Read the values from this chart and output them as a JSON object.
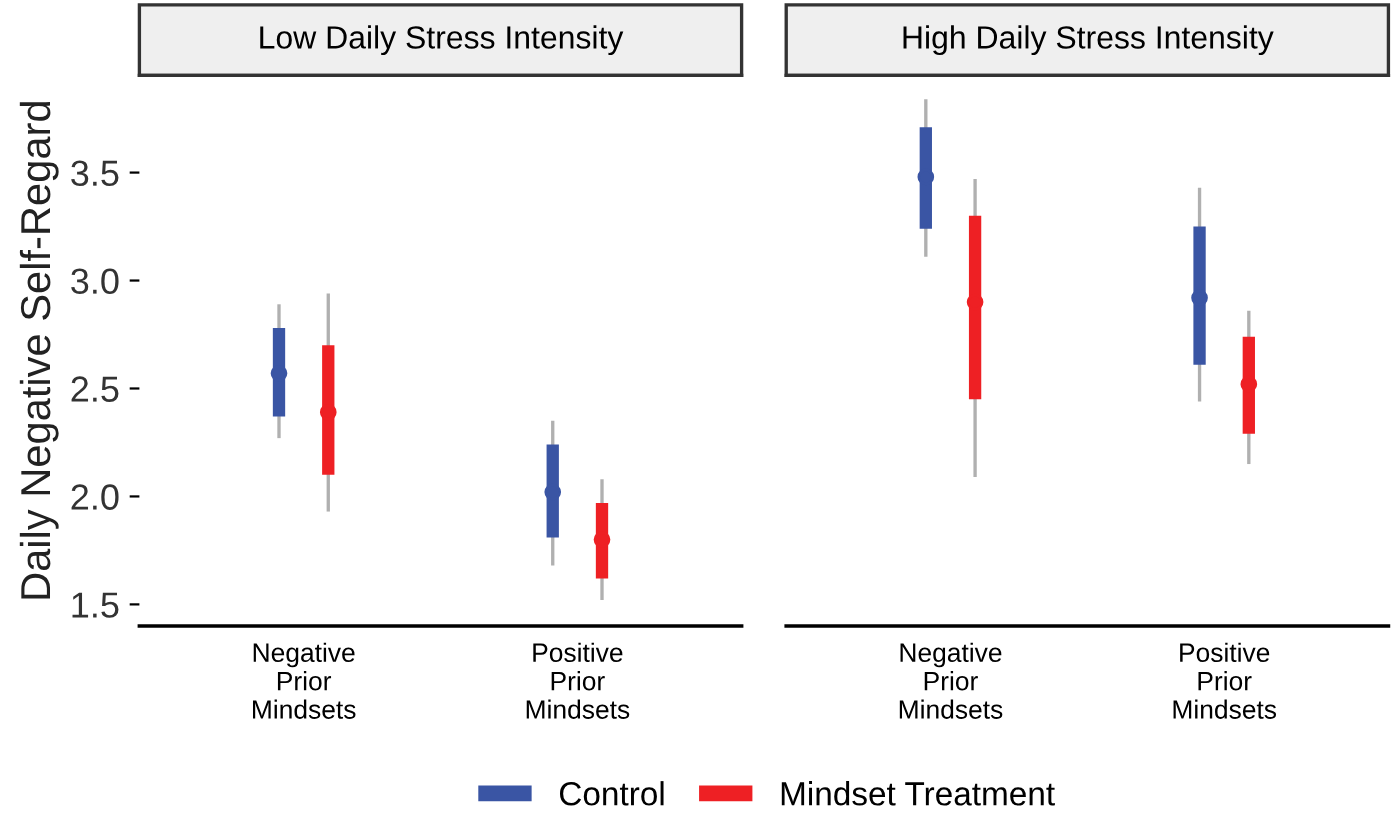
{
  "chart_data": [
    {
      "type": "box",
      "title": "Low Daily Stress Intensity",
      "ylabel": "Daily Negative Self-Regard",
      "categories": [
        "Negative\nPrior\nMindsets",
        "Positive\nPrior\nMindsets"
      ],
      "ylim": [
        1.4,
        3.95
      ],
      "yticks": [
        1.5,
        {
          "value": 2,
          "label": "2.0"
        },
        2.5,
        {
          "value": 3,
          "label": "3.0"
        },
        3.5
      ],
      "grid": false,
      "legend": "bottom",
      "marker": "circle",
      "series": [
        {
          "name": "Control",
          "color": "#3a55a4",
          "boxes": [
            {
              "low": 2.27,
              "q1": 2.37,
              "median": 2.57,
              "q3": 2.78,
              "high": 2.89
            },
            {
              "low": 1.68,
              "q1": 1.81,
              "median": 2.02,
              "q3": 2.24,
              "high": 2.35
            }
          ]
        },
        {
          "name": "Mindset Treatment",
          "color": "#ee2024",
          "boxes": [
            {
              "low": 1.93,
              "q1": 2.1,
              "median": 2.39,
              "q3": 2.7,
              "high": 2.94
            },
            {
              "low": 1.52,
              "q1": 1.62,
              "median": 1.8,
              "q3": 1.97,
              "high": 2.08
            }
          ]
        }
      ]
    },
    {
      "type": "box",
      "title": "High Daily Stress Intensity",
      "categories": [
        "Negative\nPrior\nMindsets",
        "Positive\nPrior\nMindsets"
      ],
      "ylim": [
        1.4,
        3.95
      ],
      "tick_labels": "x",
      "grid": false,
      "marker": "circle",
      "series": [
        {
          "color": "#3a55a4",
          "boxes": [
            {
              "low": 3.11,
              "q1": 3.24,
              "median": 3.48,
              "q3": 3.71,
              "high": 3.84
            },
            {
              "low": 2.44,
              "q1": 2.61,
              "median": 2.92,
              "q3": 3.25,
              "high": 3.43
            }
          ]
        },
        {
          "color": "#ee2024",
          "boxes": [
            {
              "low": 2.09,
              "q1": 2.45,
              "median": 2.9,
              "q3": 3.3,
              "high": 3.47
            },
            {
              "low": 2.15,
              "q1": 2.29,
              "median": 2.52,
              "q3": 2.74,
              "high": 2.86
            }
          ]
        }
      ]
    }
  ]
}
